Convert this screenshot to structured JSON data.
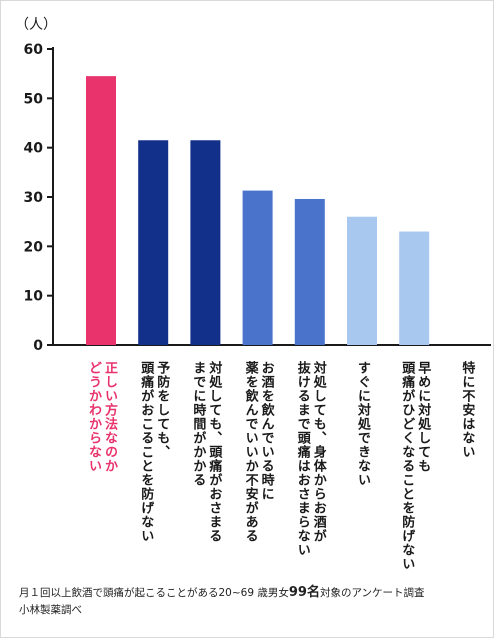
{
  "chart_data": {
    "type": "bar",
    "ylabel": "（人）",
    "ylim": [
      0,
      60
    ],
    "yticks": [
      0,
      10,
      20,
      30,
      40,
      50,
      60
    ],
    "categories": [
      "正しい方法なのか\nどうかわからない",
      "予防をしても、\n頭痛がおこることを防げない",
      "対処しても、頭痛がおさまる\nまでに時間がかかる",
      "お酒を飲んでいる時に\n薬を飲んでいいか不安がある",
      "対処しても、身体からお酒が\n抜けるまで頭痛はおさまらない",
      "すぐに対処できない",
      "早めに対処しても\n頭痛がひどくなることを防げない",
      "特に不安はない"
    ],
    "values": [
      54.5,
      41.5,
      41.5,
      31.3,
      29.6,
      26,
      23,
      0
    ],
    "bar_colors": [
      "#e8336d",
      "#12308a",
      "#12308a",
      "#4a74cb",
      "#4a74cb",
      "#a9c8f0",
      "#a9c8f0",
      "#a9c8f0"
    ],
    "highlight_index": 0,
    "highlight_color": "#e8336d"
  },
  "footer": {
    "line1_pre": "月１回以上飲酒で頭痛が起こることがある20~69 歳男女",
    "line1_num": "99名",
    "line1_post": "対象のアンケート調査",
    "line2": "小林製薬調べ"
  }
}
